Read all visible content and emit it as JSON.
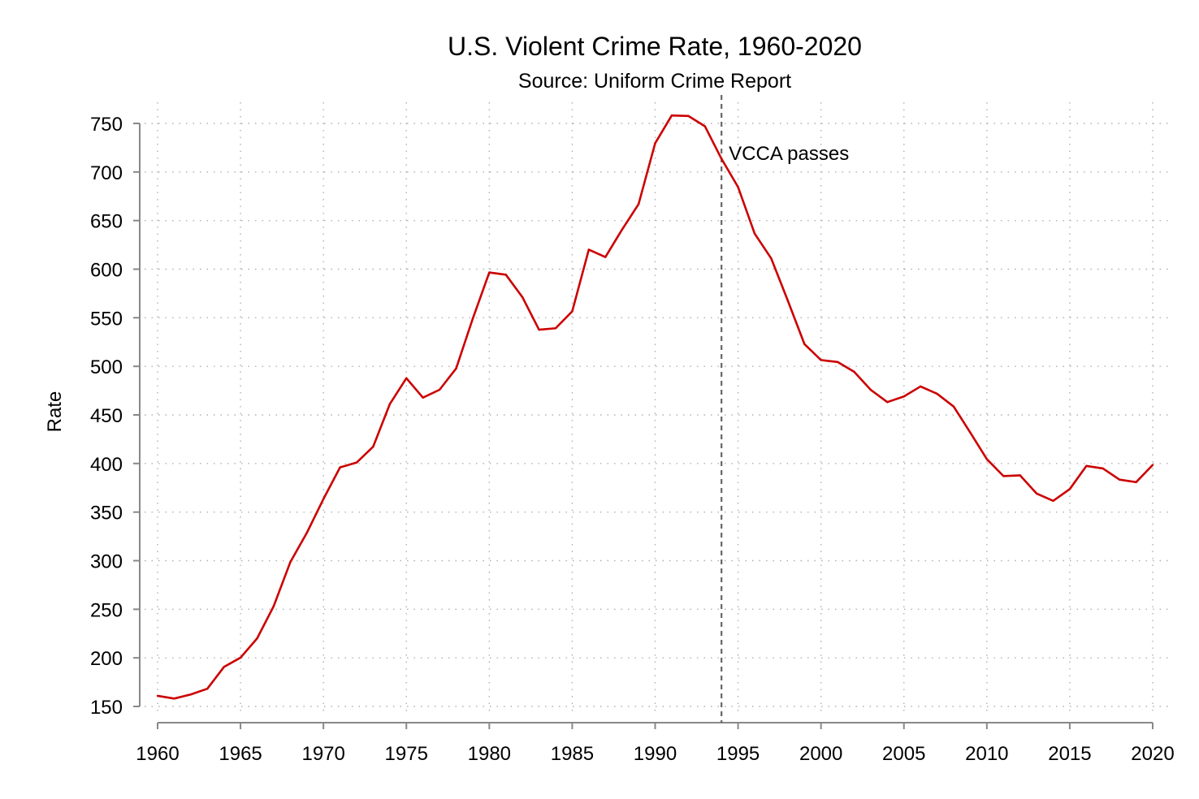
{
  "chart_data": {
    "type": "line",
    "title": "U.S. Violent Crime Rate, 1960-2020",
    "subtitle": "Source: Uniform Crime Report",
    "xlabel": "",
    "ylabel": "Rate",
    "xlim": [
      1960,
      2020
    ],
    "ylim": [
      150,
      750
    ],
    "x_ticks": [
      "1960",
      "1965",
      "1970",
      "1975",
      "1980",
      "1985",
      "1990",
      "1995",
      "2000",
      "2005",
      "2010",
      "2015",
      "2020"
    ],
    "y_ticks": [
      "150",
      "200",
      "250",
      "300",
      "350",
      "400",
      "450",
      "500",
      "550",
      "600",
      "650",
      "700",
      "750"
    ],
    "grid": "dotted",
    "line_color": "#cc0000",
    "reference_line": {
      "x": 1994,
      "label": "VCCA passes",
      "color": "#666666"
    },
    "series": [
      {
        "x": [
          1960,
          1961,
          1962,
          1963,
          1964,
          1965,
          1966,
          1967,
          1968,
          1969,
          1970,
          1971,
          1972,
          1973,
          1974,
          1975,
          1976,
          1977,
          1978,
          1979,
          1980,
          1981,
          1982,
          1983,
          1984,
          1985,
          1986,
          1987,
          1988,
          1989,
          1990,
          1991,
          1992,
          1993,
          1994,
          1995,
          1996,
          1997,
          1998,
          1999,
          2000,
          2001,
          2002,
          2003,
          2004,
          2005,
          2006,
          2007,
          2008,
          2009,
          2010,
          2011,
          2012,
          2013,
          2014,
          2015,
          2016,
          2017,
          2018,
          2019,
          2020
        ],
        "values": [
          160.9,
          158.1,
          162.3,
          168.2,
          190.6,
          200.2,
          220.0,
          253.2,
          298.4,
          328.7,
          363.5,
          396.0,
          401.0,
          417.4,
          461.1,
          487.8,
          467.8,
          475.9,
          497.8,
          548.9,
          596.6,
          594.3,
          571.1,
          537.7,
          539.2,
          556.6,
          620.1,
          612.5,
          640.6,
          666.9,
          729.6,
          758.2,
          757.7,
          747.1,
          713.6,
          684.5,
          636.6,
          611.0,
          567.6,
          523.0,
          506.5,
          504.5,
          494.4,
          475.8,
          463.2,
          469.0,
          479.3,
          471.8,
          458.6,
          431.9,
          404.5,
          387.1,
          387.8,
          369.1,
          361.6,
          373.7,
          397.5,
          394.9,
          383.4,
          380.8,
          398.5
        ]
      }
    ]
  }
}
